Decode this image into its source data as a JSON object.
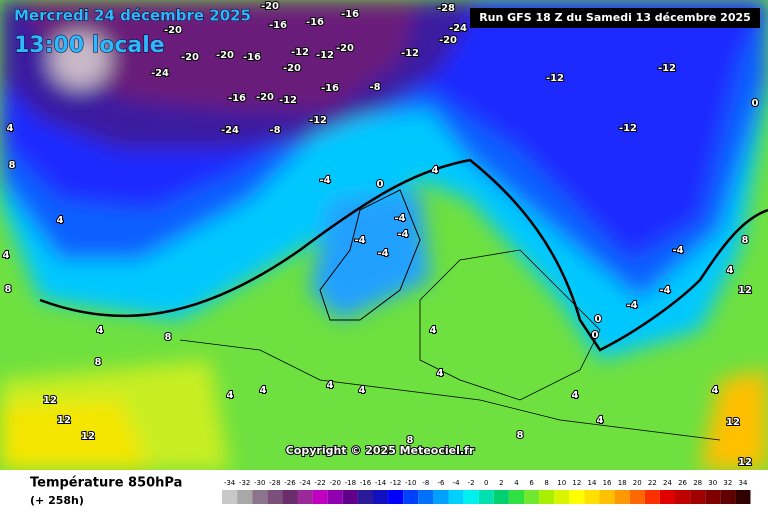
{
  "header": {
    "date": "Mercredi 24 décembre 2025",
    "time": "13:00 locale",
    "run": "Run GFS 18 Z du Samedi 13 décembre 2025",
    "copyright": "Copyright © 2025 Meteociel.fr"
  },
  "legend": {
    "title": "Température 850hPa",
    "lead": "(+ 258h)",
    "ticks": [
      -34,
      -32,
      -30,
      -28,
      -26,
      -24,
      -22,
      -20,
      -18,
      -16,
      -14,
      -12,
      -10,
      -8,
      -6,
      -4,
      -2,
      0,
      2,
      4,
      6,
      8,
      10,
      12,
      14,
      16,
      18,
      20,
      22,
      24,
      26,
      28,
      30,
      32,
      34
    ],
    "colors": [
      "#c8c8c8",
      "#a8a8a8",
      "#8c748c",
      "#7a507a",
      "#6a2e6a",
      "#9a2a9a",
      "#c000c0",
      "#9000b0",
      "#60008a",
      "#2a1a9a",
      "#1010c0",
      "#0000ff",
      "#0040ff",
      "#0070ff",
      "#00a0ff",
      "#00d0ff",
      "#00f0f0",
      "#00e0b0",
      "#00d070",
      "#30e040",
      "#70e830",
      "#a8f000",
      "#d8f400",
      "#ffff00",
      "#ffe000",
      "#ffc000",
      "#ff9800",
      "#ff6800",
      "#ff3000",
      "#e00000",
      "#c00000",
      "#a00000",
      "#800000",
      "#600000",
      "#300000"
    ]
  },
  "map": {
    "contour_labels": [
      -20,
      -16,
      -16,
      -16,
      -20,
      -24,
      -20,
      -20,
      -16,
      -12,
      -12,
      -20,
      -20,
      -16,
      -16,
      -20,
      -12,
      -24,
      -8,
      -12,
      -12,
      -20,
      -24,
      -28,
      -8,
      -12,
      -12,
      -12,
      0,
      -4,
      0,
      4,
      -4,
      -4,
      -4,
      -4,
      4,
      8,
      4,
      8,
      4,
      4,
      8,
      8,
      12,
      12,
      12,
      4,
      4,
      4,
      4,
      4,
      4,
      4,
      8,
      8,
      12,
      12,
      0,
      -4,
      -4,
      -4,
      8,
      12,
      4,
      4,
      4,
      0
    ]
  }
}
